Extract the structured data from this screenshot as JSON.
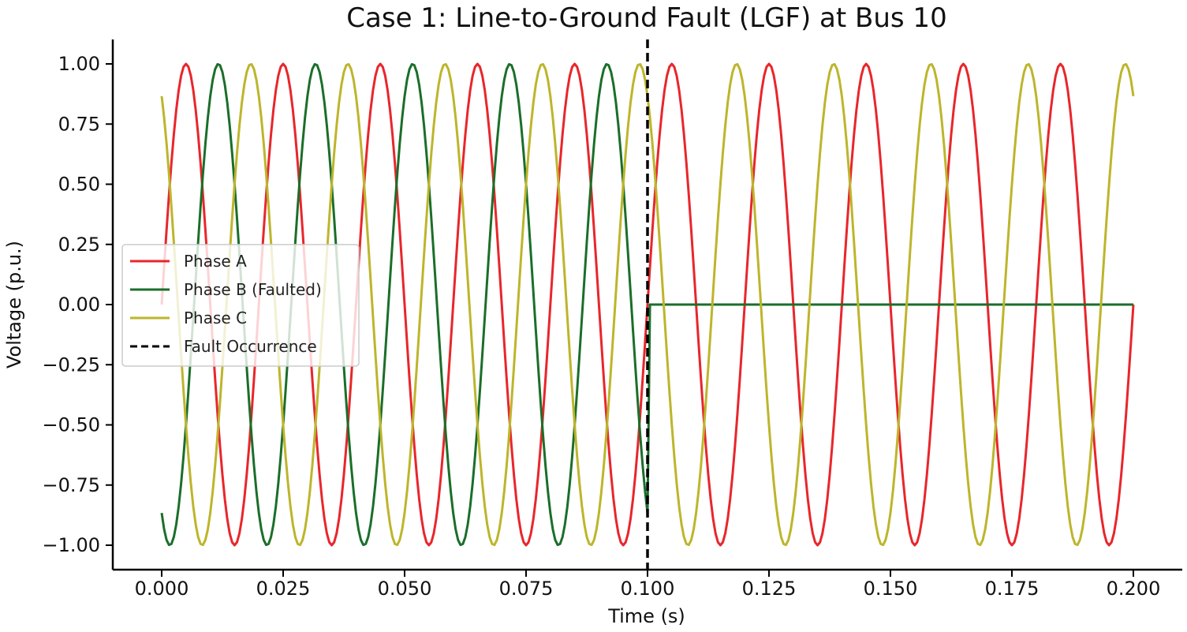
{
  "chart_data": {
    "type": "line",
    "title": "Case 1: Line-to-Ground Fault (LGF) at Bus 10",
    "xlabel": "Time (s)",
    "ylabel": "Voltage (p.u.)",
    "xlim": [
      0.0,
      0.2
    ],
    "ylim": [
      -1.0,
      1.0
    ],
    "x_ticks": [
      "0.000",
      "0.025",
      "0.050",
      "0.075",
      "0.100",
      "0.125",
      "0.150",
      "0.175",
      "0.200"
    ],
    "y_ticks": [
      "−1.00",
      "−0.75",
      "−0.50",
      "−0.25",
      "0.00",
      "0.25",
      "0.50",
      "0.75",
      "1.00"
    ],
    "grid": false,
    "legend_position": "center-left",
    "sampling": {
      "x_start": 0.0,
      "x_end": 0.2,
      "x_step": 0.0005
    },
    "series": [
      {
        "name": "Phase A",
        "color": "#e8262b",
        "waveform": "sine",
        "frequency_hz": 50,
        "amplitude_pu": 1.0,
        "phase_deg": 0
      },
      {
        "name": "Phase B (Faulted)",
        "color": "#1b6e2a",
        "waveform": "sine",
        "frequency_hz": 50,
        "amplitude_pu": 1.0,
        "phase_deg": -120,
        "amplitude_after_fault_pu": 0.0
      },
      {
        "name": "Phase C",
        "color": "#bdb52b",
        "waveform": "sine",
        "frequency_hz": 50,
        "amplitude_pu": 1.0,
        "phase_deg": 120
      }
    ],
    "fault_marker": {
      "name": "Fault Occurrence",
      "x": 0.1,
      "color": "#000000",
      "style": "dashed"
    }
  }
}
